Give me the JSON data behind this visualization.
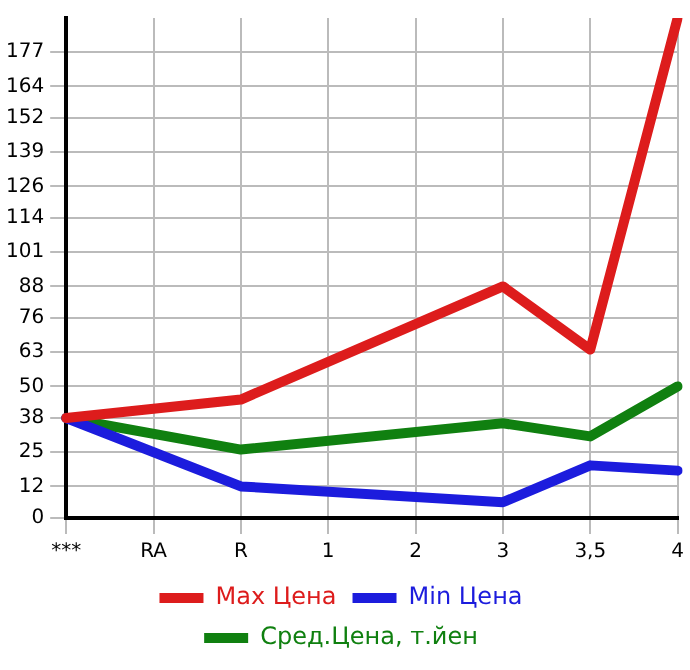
{
  "chart_data": {
    "type": "line",
    "categories": [
      "***",
      "RA",
      "R",
      "1",
      "2",
      "3",
      "3,5",
      "4"
    ],
    "series": [
      {
        "name": "Max Цена",
        "color": "#dd1c1c",
        "values": [
          38,
          null,
          45,
          null,
          null,
          88,
          64,
          190
        ]
      },
      {
        "name": "Min Цена",
        "color": "#1c1cdd",
        "values": [
          38,
          null,
          12,
          null,
          null,
          6,
          20,
          18
        ]
      },
      {
        "name": "Сред.Цена, т.йен",
        "color": "#108010",
        "values": [
          38,
          null,
          26,
          null,
          null,
          36,
          31,
          50
        ]
      }
    ],
    "ylim": [
      0,
      190
    ],
    "yticks": [
      0,
      12,
      25,
      38,
      50,
      63,
      76,
      88,
      101,
      114,
      126,
      139,
      152,
      164,
      177
    ],
    "grid": true,
    "legend": "bottom",
    "marker": "none",
    "line_style": "solid"
  }
}
